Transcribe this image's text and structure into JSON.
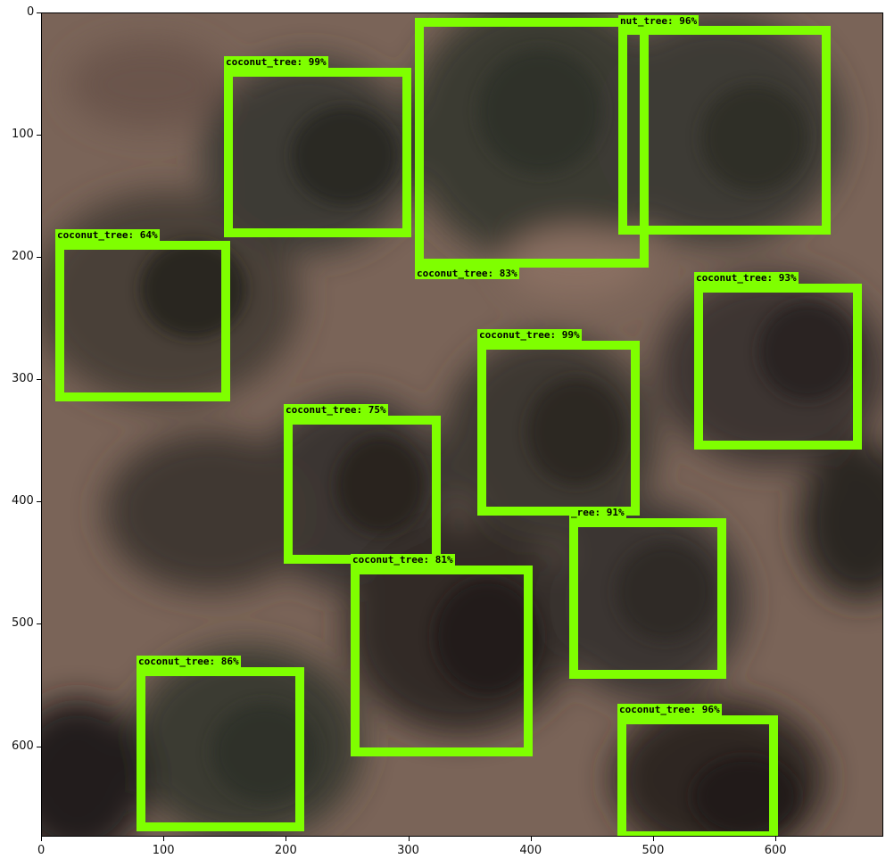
{
  "image": {
    "description_colors": {
      "ground": "#7a6458",
      "canopy_dark": "#2b2622",
      "canopy_mid": "#4a4a3e",
      "box": "#7fff00"
    }
  },
  "axes": {
    "x_ticks": [
      "0",
      "100",
      "200",
      "300",
      "400",
      "500",
      "600"
    ],
    "y_ticks": [
      "0",
      "100",
      "200",
      "300",
      "400",
      "500",
      "600"
    ]
  },
  "detections": [
    {
      "label": "coconut_tree: 99%"
    },
    {
      "label": "coconut_tree: 83%"
    },
    {
      "label": "nut_tree: 96%"
    },
    {
      "label": "coconut_tree: 64%"
    },
    {
      "label": "coconut_tree: 93%"
    },
    {
      "label": "coconut_tree: 99%"
    },
    {
      "label": "coconut_tree: 75%"
    },
    {
      "label": "_ree: 91%"
    },
    {
      "label": "coconut_tree: 81%"
    },
    {
      "label": "coconut_tree: 86%"
    },
    {
      "label": "coconut_tree: 96%"
    }
  ]
}
